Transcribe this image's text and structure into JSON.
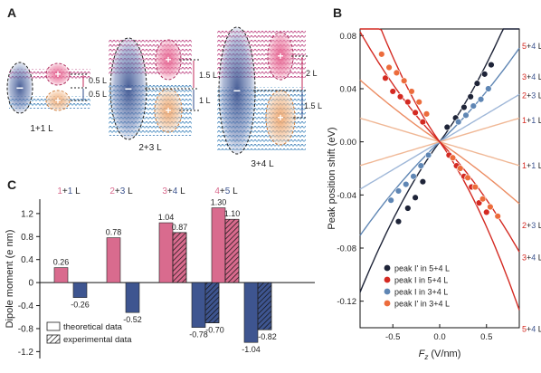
{
  "panels": {
    "a": {
      "label": "A",
      "structures": [
        {
          "name": "1+1 L",
          "spacings": [
            "0.5 L",
            "0.5 L"
          ]
        },
        {
          "name": "2+3 L",
          "spacings": [
            "1.5 L",
            "1 L"
          ]
        },
        {
          "name": "3+4 L",
          "spacings": [
            "2 L",
            "1.5 L"
          ]
        }
      ],
      "charge_plus": "+",
      "charge_minus": "−"
    },
    "b": {
      "label": "B"
    },
    "c": {
      "label": "C"
    }
  },
  "colors": {
    "pink": "#d96b8e",
    "blue": "#3e5590",
    "navy": "#1e2438",
    "red": "#d42a22",
    "steel": "#5f86b4",
    "lightblue": "#9fb7d8",
    "salmon": "#ec8c62",
    "peach": "#f0b896"
  },
  "chart_data": [
    {
      "id": "C",
      "type": "bar",
      "ylabel": "Dipole moment (e nm)",
      "yticks": [
        "1.2",
        "0.8",
        "0.4",
        "0",
        "-0.4",
        "-0.8",
        "-1.2"
      ],
      "ylim": [
        -1.32,
        1.45
      ],
      "groups": [
        {
          "label_a": "1",
          "label_op": "+",
          "label_b": "1",
          "label_unit": " L",
          "theo_pos": 0.26,
          "theo_pos_label": "0.26",
          "theo_neg": -0.26,
          "theo_neg_label": "-0.26",
          "exp_pos": null,
          "exp_pos_label": "",
          "exp_neg": null,
          "exp_neg_label": ""
        },
        {
          "label_a": "2",
          "label_op": "+",
          "label_b": "3",
          "label_unit": " L",
          "theo_pos": 0.78,
          "theo_pos_label": "0.78",
          "theo_neg": -0.52,
          "theo_neg_label": "-0.52",
          "exp_pos": null,
          "exp_pos_label": "",
          "exp_neg": null,
          "exp_neg_label": ""
        },
        {
          "label_a": "3",
          "label_op": "+",
          "label_b": "4",
          "label_unit": " L",
          "theo_pos": 1.04,
          "theo_pos_label": "1.04",
          "theo_neg": -0.78,
          "theo_neg_label": "-0.78",
          "exp_pos": 0.87,
          "exp_pos_label": "0.87",
          "exp_neg": -0.7,
          "exp_neg_label": "-0.70"
        },
        {
          "label_a": "4",
          "label_op": "+",
          "label_b": "5",
          "label_unit": " L",
          "theo_pos": 1.3,
          "theo_pos_label": "1.30",
          "theo_neg": -1.04,
          "theo_neg_label": "-1.04",
          "exp_pos": 1.1,
          "exp_pos_label": "1.10",
          "exp_neg": -0.82,
          "exp_neg_label": "-0.82"
        }
      ],
      "legend": {
        "theoretical": "theoretical data",
        "experimental": "experimental data"
      }
    },
    {
      "id": "B",
      "type": "line",
      "xlabel_var": "F",
      "xlabel_sub": "z",
      "xlabel_unit": " (V/nm)",
      "ylabel": "Peak position  shift (eV)",
      "xlim": [
        -0.85,
        0.85
      ],
      "ylim": [
        -0.14,
        0.085
      ],
      "xticks": [
        -0.5,
        0.0,
        0.5
      ],
      "xtick_labels": [
        "-0.5",
        "0.0",
        "0.5"
      ],
      "yticks": [
        0.08,
        0.04,
        0.0,
        -0.04,
        -0.08,
        -0.12
      ],
      "ytick_labels": [
        "0.08",
        "0.04",
        "0.00",
        "-0.04",
        "-0.08",
        "-0.12"
      ],
      "lines": [
        {
          "name": "5+4 L",
          "a": "5",
          "b": "4",
          "color": "#1e2438",
          "slope": 0.095,
          "quad": 0.045,
          "label_side": "top"
        },
        {
          "name": "3+4 L",
          "a": "3",
          "b": "4",
          "color": "#5f86b4",
          "slope": 0.066,
          "quad": 0.02,
          "label_side": "top"
        },
        {
          "name": "2+3 L",
          "a": "2",
          "b": "3",
          "color": "#9fb7d8",
          "slope": 0.042,
          "quad": 0.0,
          "label_side": "top"
        },
        {
          "name": "1+1 L",
          "a": "1",
          "b": "1",
          "color": "#f0b896",
          "slope": -0.021,
          "quad": 0.0,
          "label_side": "top"
        },
        {
          "name": "1+1 L",
          "a": "1",
          "b": "1",
          "color": "#f0b896",
          "slope": 0.021,
          "quad": 0.0,
          "label_side": "right-mid"
        },
        {
          "name": "2+3 L",
          "a": "2",
          "b": "3",
          "color": "#ec8c62",
          "slope": -0.048,
          "quad": -0.008,
          "label_side": "bottom"
        },
        {
          "name": "3+4 L",
          "a": "3",
          "b": "4",
          "color": "#d42a22",
          "slope": -0.072,
          "quad": -0.03,
          "label_side": "bottom"
        },
        {
          "name": "5+4 L",
          "a": "5",
          "b": "4",
          "color": "#d42a22",
          "slope": -0.098,
          "quad": -0.06,
          "label_side": "bottom"
        }
      ],
      "top_labels": [
        {
          "a": "5",
          "b": "4",
          "y": 0.072
        },
        {
          "a": "3",
          "b": "4",
          "y": 0.049
        },
        {
          "a": "2",
          "b": "3",
          "y": 0.035
        },
        {
          "a": "1",
          "b": "1",
          "y": 0.016
        },
        {
          "a": "1",
          "b": "1",
          "y": -0.018
        }
      ],
      "bottom_labels": [
        {
          "a": "2",
          "b": "3",
          "y": -0.063
        },
        {
          "a": "3",
          "b": "4",
          "y": -0.087
        },
        {
          "a": "5",
          "b": "4",
          "y": -0.141
        }
      ],
      "series": [
        {
          "name": "peak I' in 5+4 L",
          "color": "#1e2438",
          "points": [
            [
              0.08,
              0.011
            ],
            [
              0.17,
              0.018
            ],
            [
              0.26,
              0.026
            ],
            [
              0.33,
              0.034
            ],
            [
              0.4,
              0.044
            ],
            [
              0.48,
              0.051
            ],
            [
              0.55,
              0.058
            ]
          ]
        },
        {
          "name": "peak I in 5+4 L",
          "color": "#d42a22",
          "points": [
            [
              -0.58,
              0.048
            ],
            [
              -0.5,
              0.038
            ],
            [
              -0.42,
              0.034
            ],
            [
              -0.34,
              0.03
            ],
            [
              -0.26,
              0.022
            ],
            [
              -0.18,
              0.015
            ],
            [
              0.1,
              -0.01
            ],
            [
              0.18,
              -0.018
            ],
            [
              0.26,
              -0.026
            ],
            [
              0.34,
              -0.034
            ],
            [
              0.42,
              -0.046
            ],
            [
              0.5,
              -0.053
            ]
          ]
        },
        {
          "name": "peak I in 3+4 L",
          "color": "#5f86b4",
          "points": [
            [
              -0.52,
              -0.044
            ],
            [
              -0.44,
              -0.037
            ],
            [
              -0.36,
              -0.032
            ],
            [
              -0.28,
              -0.026
            ],
            [
              -0.2,
              -0.018
            ],
            [
              -0.12,
              -0.01
            ],
            [
              0.2,
              0.015
            ],
            [
              0.28,
              0.02
            ],
            [
              0.36,
              0.027
            ],
            [
              0.44,
              0.032
            ],
            [
              0.52,
              0.04
            ]
          ]
        },
        {
          "name": "peak I' in 3+4 L",
          "color": "#ec6c3c",
          "points": [
            [
              -0.62,
              0.066
            ],
            [
              -0.54,
              0.056
            ],
            [
              -0.46,
              0.052
            ],
            [
              -0.38,
              0.046
            ],
            [
              -0.3,
              0.038
            ],
            [
              -0.22,
              0.03
            ],
            [
              -0.14,
              0.021
            ],
            [
              0.14,
              -0.012
            ],
            [
              0.22,
              -0.02
            ],
            [
              0.3,
              -0.027
            ],
            [
              0.38,
              -0.034
            ],
            [
              0.46,
              -0.043
            ],
            [
              0.54,
              -0.049
            ],
            [
              0.62,
              -0.056
            ]
          ]
        }
      ],
      "navy_low_points": [
        [
          -0.44,
          -0.06
        ],
        [
          -0.34,
          -0.05
        ],
        [
          -0.26,
          -0.042
        ],
        [
          -0.18,
          -0.03
        ]
      ]
    }
  ]
}
